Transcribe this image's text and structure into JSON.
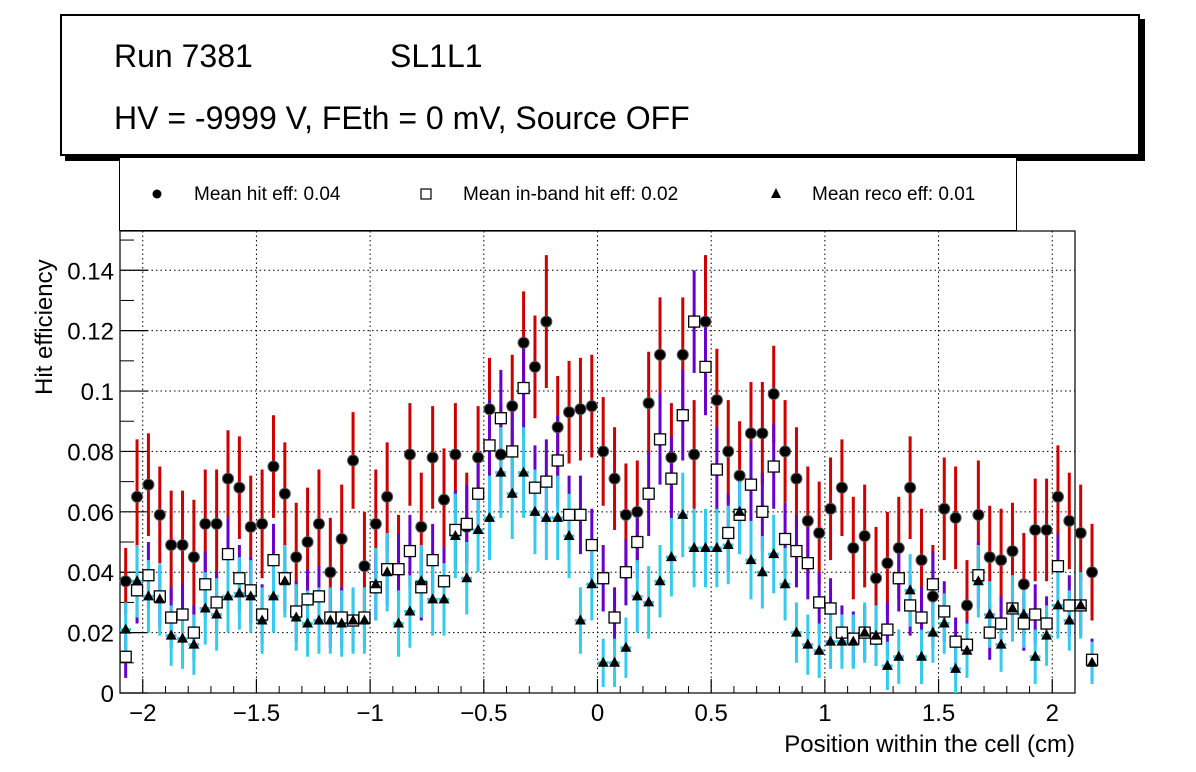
{
  "header": {
    "run_label": "Run 7381",
    "layer_label": "SL1L1",
    "conditions": "HV = -9999 V, FEth = 0 mV, Source OFF"
  },
  "chart_data": {
    "type": "scatter",
    "title": "Run 7381   SL1L1 — HV = -9999 V, FEth = 0 mV, Source OFF",
    "xlabel": "Position within the cell (cm)",
    "ylabel": "Hit efficiency",
    "xlim": [
      -2.1,
      2.1
    ],
    "ylim": [
      0,
      0.153
    ],
    "grid": true,
    "legend_position": "top",
    "x_ticks": [
      -2,
      -1.5,
      -1,
      -0.5,
      0,
      0.5,
      1,
      1.5,
      2
    ],
    "x_tick_labels": [
      "−2",
      "−1.5",
      "−1",
      "−0.5",
      "0",
      "0.5",
      "1",
      "1.5",
      "2"
    ],
    "y_ticks": [
      0,
      0.02,
      0.04,
      0.06,
      0.08,
      0.1,
      0.12,
      0.14
    ],
    "y_tick_labels": [
      "0",
      "0.02",
      "0.04",
      "0.06",
      "0.08",
      "0.1",
      "0.12",
      "0.14"
    ],
    "bin_start": -2.075,
    "bin_step": 0.05,
    "series": [
      {
        "name": "Mean hit  eff: 0.04",
        "marker": "circle",
        "error_color": "#cc0000",
        "values": [
          0.037,
          0.065,
          0.069,
          0.059,
          0.049,
          0.049,
          0.045,
          0.056,
          0.056,
          0.071,
          0.068,
          0.055,
          0.056,
          0.075,
          0.066,
          0.045,
          0.05,
          0.056,
          0.04,
          0.051,
          0.077,
          0.042,
          0.056,
          0.065,
          0.041,
          0.079,
          0.055,
          0.078,
          0.064,
          0.079,
          0.055,
          0.078,
          0.094,
          0.079,
          0.095,
          0.116,
          0.108,
          0.123,
          0.088,
          0.093,
          0.094,
          0.095,
          0.08,
          0.071,
          0.059,
          0.06,
          0.096,
          0.112,
          0.078,
          0.112,
          0.079,
          0.123,
          0.097,
          0.08,
          0.072,
          0.086,
          0.086,
          0.099,
          0.08,
          0.071,
          0.057,
          0.053,
          0.061,
          0.068,
          0.048,
          0.052,
          0.038,
          0.043,
          0.048,
          0.068,
          0.044,
          0.032,
          0.061,
          0.058,
          0.029,
          0.059,
          0.045,
          0.044,
          0.047,
          0.036,
          0.054,
          0.054,
          0.065,
          0.057,
          0.053,
          0.04
        ],
        "errors": [
          0.011,
          0.019,
          0.017,
          0.016,
          0.018,
          0.018,
          0.019,
          0.018,
          0.018,
          0.016,
          0.017,
          0.017,
          0.018,
          0.017,
          0.017,
          0.018,
          0.018,
          0.018,
          0.018,
          0.018,
          0.016,
          0.018,
          0.018,
          0.018,
          0.018,
          0.017,
          0.018,
          0.017,
          0.017,
          0.017,
          0.018,
          0.017,
          0.017,
          0.017,
          0.017,
          0.017,
          0.017,
          0.022,
          0.017,
          0.017,
          0.017,
          0.017,
          0.018,
          0.017,
          0.017,
          0.017,
          0.017,
          0.019,
          0.018,
          0.019,
          0.018,
          0.022,
          0.017,
          0.017,
          0.018,
          0.017,
          0.017,
          0.016,
          0.017,
          0.017,
          0.018,
          0.017,
          0.017,
          0.016,
          0.017,
          0.017,
          0.017,
          0.017,
          0.017,
          0.017,
          0.017,
          0.017,
          0.017,
          0.017,
          0.015,
          0.018,
          0.017,
          0.017,
          0.016,
          0.017,
          0.017,
          0.017,
          0.017,
          0.016,
          0.016,
          0.016
        ]
      },
      {
        "name": "Mean in-band hit eff: 0.02",
        "marker": "open-square",
        "error_color": "#6600cc",
        "values": [
          0.012,
          0.034,
          0.039,
          0.032,
          0.025,
          0.026,
          0.02,
          0.036,
          0.03,
          0.046,
          0.038,
          0.034,
          0.026,
          0.044,
          0.038,
          0.027,
          0.031,
          0.032,
          0.025,
          0.025,
          0.024,
          0.025,
          0.035,
          0.041,
          0.041,
          0.047,
          0.035,
          0.044,
          0.037,
          0.054,
          0.056,
          0.066,
          0.082,
          0.091,
          0.08,
          0.101,
          0.068,
          0.07,
          0.077,
          0.059,
          0.059,
          0.049,
          0.038,
          0.025,
          0.04,
          0.05,
          0.066,
          0.084,
          0.071,
          0.092,
          0.123,
          0.108,
          0.074,
          0.053,
          0.059,
          0.069,
          0.06,
          0.075,
          0.051,
          0.047,
          0.043,
          0.03,
          0.028,
          0.02,
          0.018,
          0.02,
          0.018,
          0.021,
          0.038,
          0.029,
          0.025,
          0.036,
          0.027,
          0.017,
          0.016,
          0.039,
          0.02,
          0.023,
          0.028,
          0.023,
          0.026,
          0.023,
          0.042,
          0.029,
          0.029,
          0.011
        ],
        "errors": [
          0.007,
          0.011,
          0.011,
          0.01,
          0.01,
          0.01,
          0.009,
          0.011,
          0.01,
          0.012,
          0.011,
          0.011,
          0.01,
          0.012,
          0.011,
          0.01,
          0.01,
          0.01,
          0.01,
          0.01,
          0.01,
          0.01,
          0.011,
          0.012,
          0.012,
          0.012,
          0.011,
          0.012,
          0.011,
          0.013,
          0.013,
          0.014,
          0.015,
          0.016,
          0.015,
          0.016,
          0.014,
          0.014,
          0.015,
          0.013,
          0.013,
          0.012,
          0.011,
          0.01,
          0.011,
          0.012,
          0.014,
          0.015,
          0.014,
          0.015,
          0.017,
          0.016,
          0.014,
          0.013,
          0.013,
          0.014,
          0.013,
          0.014,
          0.012,
          0.012,
          0.012,
          0.01,
          0.01,
          0.009,
          0.009,
          0.009,
          0.009,
          0.009,
          0.011,
          0.01,
          0.01,
          0.011,
          0.01,
          0.008,
          0.008,
          0.011,
          0.009,
          0.009,
          0.01,
          0.009,
          0.01,
          0.009,
          0.011,
          0.01,
          0.01,
          0.007
        ]
      },
      {
        "name": "Mean reco eff: 0.01",
        "marker": "triangle",
        "error_color": "#33ccee",
        "values": [
          0.021,
          0.037,
          0.032,
          0.031,
          0.019,
          0.018,
          0.016,
          0.028,
          0.026,
          0.032,
          0.033,
          0.032,
          0.024,
          0.032,
          0.037,
          0.025,
          0.023,
          0.024,
          0.024,
          0.023,
          0.024,
          0.024,
          0.036,
          0.04,
          0.023,
          0.027,
          0.037,
          0.031,
          0.031,
          0.052,
          0.038,
          0.054,
          0.058,
          0.073,
          0.066,
          0.073,
          0.06,
          0.058,
          0.058,
          0.052,
          0.024,
          0.036,
          0.01,
          0.01,
          0.015,
          0.032,
          0.03,
          0.037,
          0.045,
          0.059,
          0.048,
          0.048,
          0.048,
          0.049,
          0.06,
          0.044,
          0.04,
          0.046,
          0.036,
          0.02,
          0.016,
          0.014,
          0.017,
          0.017,
          0.017,
          0.02,
          0.019,
          0.009,
          0.012,
          0.034,
          0.012,
          0.02,
          0.023,
          0.008,
          0.014,
          0.037,
          0.026,
          0.016,
          0.028,
          0.026,
          0.012,
          0.019,
          0.029,
          0.024,
          0.029,
          0.01
        ],
        "errors": [
          0.009,
          0.012,
          0.012,
          0.012,
          0.01,
          0.01,
          0.01,
          0.012,
          0.012,
          0.012,
          0.012,
          0.012,
          0.011,
          0.012,
          0.012,
          0.011,
          0.011,
          0.011,
          0.011,
          0.011,
          0.011,
          0.011,
          0.012,
          0.013,
          0.011,
          0.012,
          0.012,
          0.012,
          0.012,
          0.014,
          0.012,
          0.014,
          0.014,
          0.015,
          0.015,
          0.015,
          0.014,
          0.014,
          0.014,
          0.014,
          0.011,
          0.012,
          0.008,
          0.008,
          0.01,
          0.012,
          0.012,
          0.012,
          0.013,
          0.014,
          0.013,
          0.013,
          0.013,
          0.013,
          0.014,
          0.013,
          0.012,
          0.013,
          0.012,
          0.01,
          0.01,
          0.009,
          0.009,
          0.009,
          0.009,
          0.01,
          0.01,
          0.008,
          0.009,
          0.012,
          0.009,
          0.01,
          0.01,
          0.008,
          0.009,
          0.012,
          0.011,
          0.009,
          0.011,
          0.011,
          0.009,
          0.01,
          0.011,
          0.01,
          0.011,
          0.007
        ]
      }
    ]
  },
  "legend": {
    "items": [
      {
        "label": "Mean hit  eff: 0.04",
        "marker": "circle"
      },
      {
        "label": "Mean in-band hit eff: 0.02",
        "marker": "open-square"
      },
      {
        "label": "Mean reco eff: 0.01",
        "marker": "triangle"
      }
    ]
  }
}
